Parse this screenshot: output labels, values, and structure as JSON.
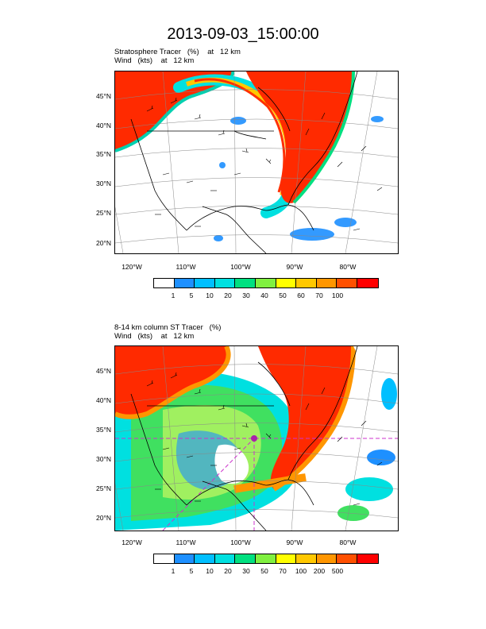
{
  "title": "2013-09-03_15:00:00",
  "panels": [
    {
      "caption_line1": "Stratosphere Tracer   (%)    at   12 km",
      "caption_line2": "Wind   (kts)    at   12 km",
      "lat_labels": [
        "45°N",
        "40°N",
        "35°N",
        "30°N",
        "25°N",
        "20°N"
      ],
      "lon_labels": [
        "120°W",
        "110°W",
        "100°W",
        "90°W",
        "80°W"
      ],
      "colorbar_labels": [
        "1",
        "5",
        "10",
        "20",
        "30",
        "40",
        "50",
        "60",
        "70",
        "100"
      ]
    },
    {
      "caption_line1": "8-14 km column ST Tracer   (%)",
      "caption_line2": "Wind   (kts)    at   12 km",
      "lat_labels": [
        "45°N",
        "40°N",
        "35°N",
        "30°N",
        "25°N",
        "20°N"
      ],
      "lon_labels": [
        "120°W",
        "110°W",
        "100°W",
        "90°W",
        "80°W"
      ],
      "colorbar_labels": [
        "1",
        "5",
        "10",
        "20",
        "30",
        "50",
        "70",
        "100",
        "200",
        "500"
      ]
    }
  ],
  "colorbar_colors": [
    "#ffffff",
    "#1e90ff",
    "#00bfff",
    "#00e0e0",
    "#00e080",
    "#80f040",
    "#ffff00",
    "#ffc800",
    "#ff9600",
    "#ff5000",
    "#ff0000"
  ]
}
